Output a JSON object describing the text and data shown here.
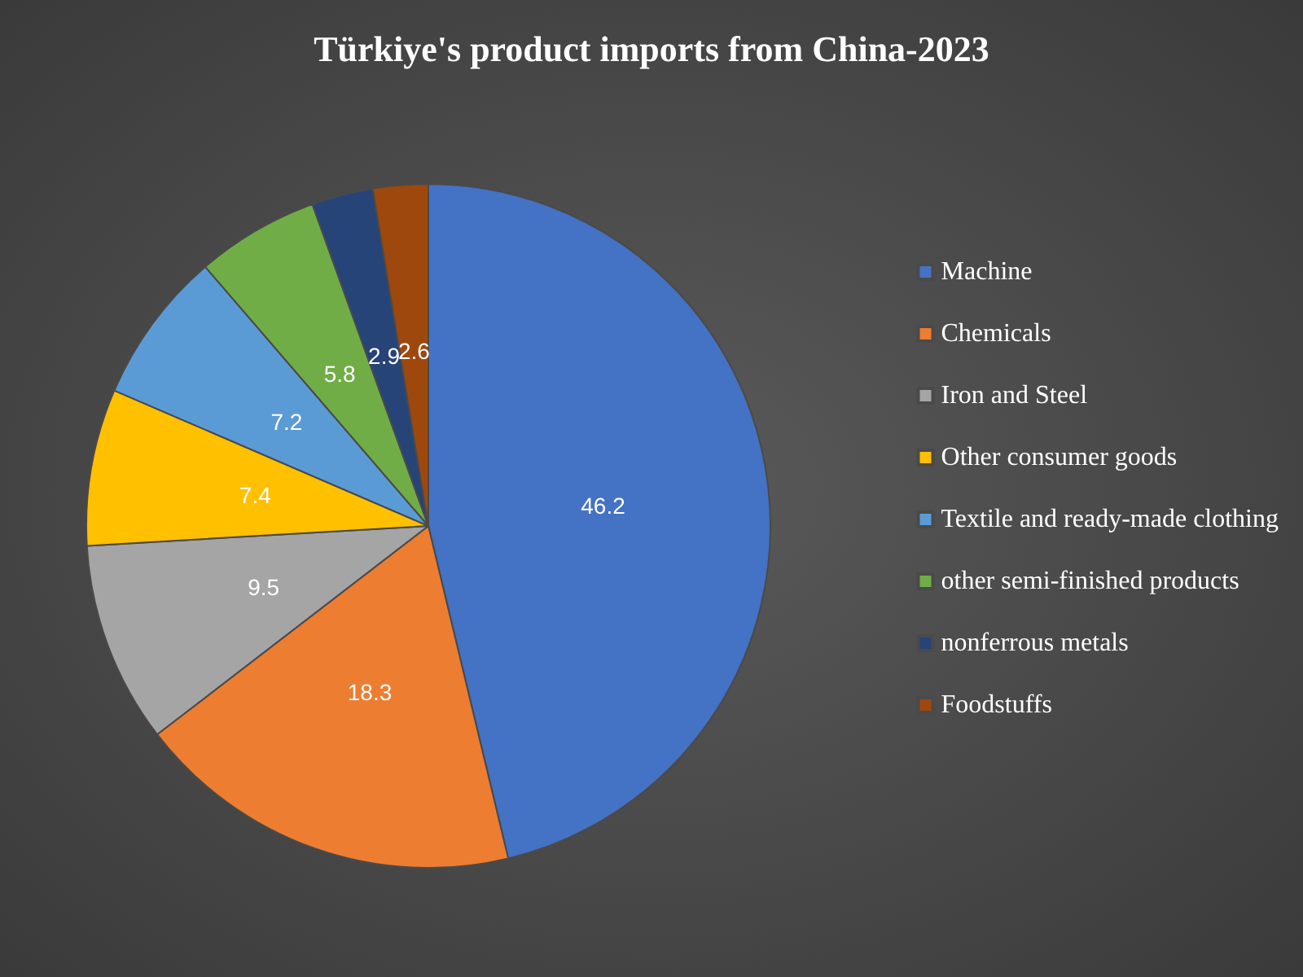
{
  "chart_data": {
    "type": "pie",
    "title": "Türkiye's product imports from China-2023",
    "categories": [
      "Machine",
      "Chemicals",
      "Iron and Steel",
      "Other consumer goods",
      "Textile and ready-made clothing",
      "other semi-finished products",
      "nonferrous metals",
      "Foodstuffs"
    ],
    "values": [
      46.2,
      18.3,
      9.5,
      7.4,
      7.2,
      5.8,
      2.9,
      2.6
    ],
    "colors": [
      "#4472c4",
      "#ed7d31",
      "#a5a5a5",
      "#ffc000",
      "#5b9bd5",
      "#70ad47",
      "#264478",
      "#9e480e"
    ],
    "data_labels": true,
    "legend": "right"
  }
}
